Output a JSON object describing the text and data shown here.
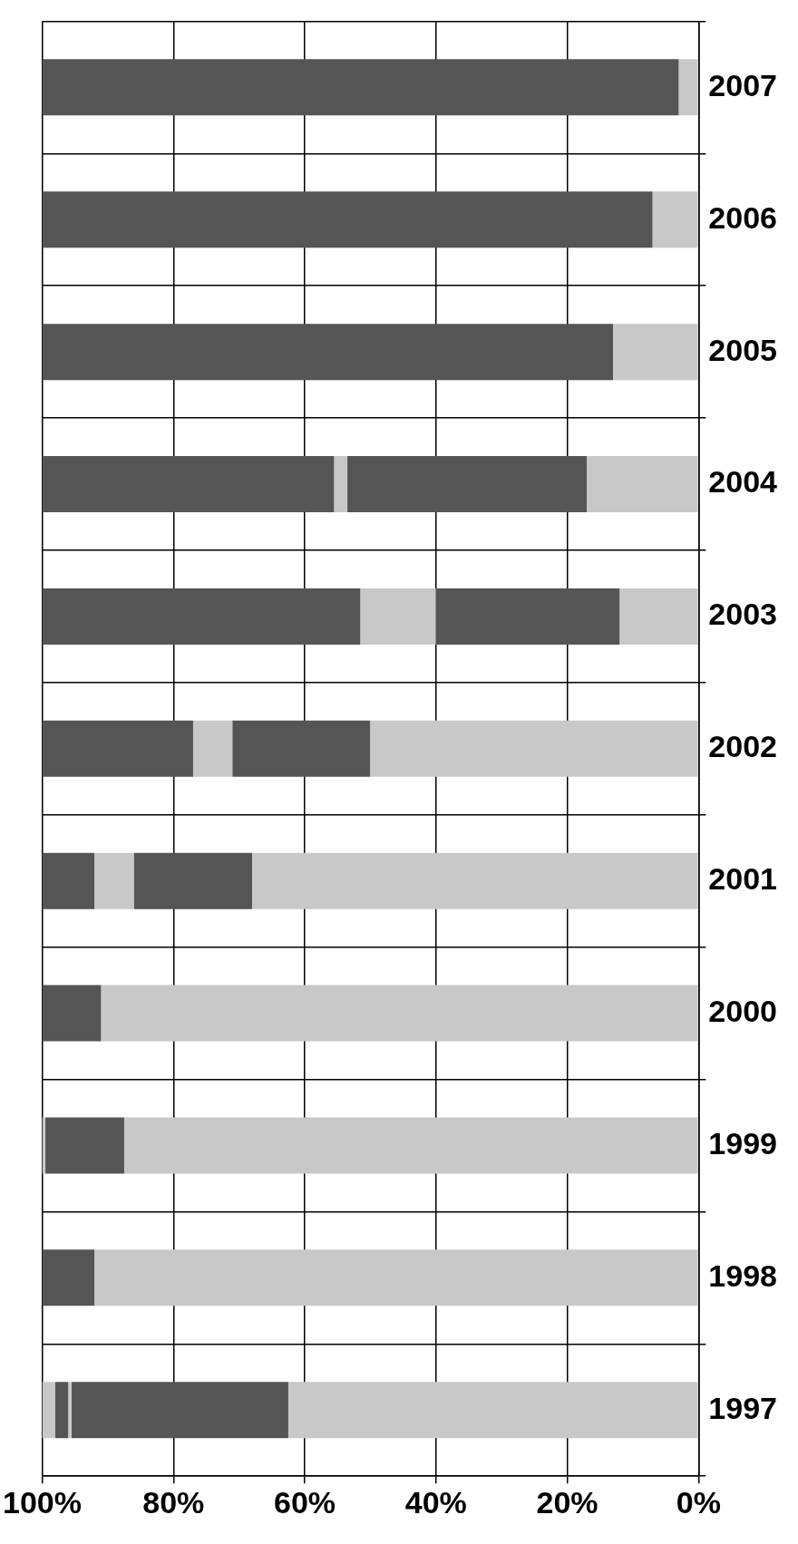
{
  "chart_data": {
    "type": "bar",
    "orientation": "horizontal",
    "stacked": true,
    "categories": [
      "2007",
      "2006",
      "2005",
      "2004",
      "2003",
      "2002",
      "2001",
      "2000",
      "1999",
      "1998",
      "1997"
    ],
    "series": [
      {
        "color": "#c8c8c8",
        "values": [
          3,
          7,
          13,
          17,
          12,
          50,
          68,
          91,
          87.5,
          92,
          62.5
        ]
      },
      {
        "color": "#555555",
        "values": [
          97,
          93,
          87,
          36.5,
          28,
          21,
          18,
          9,
          12,
          8,
          33
        ]
      },
      {
        "color": "#c8c8c8",
        "values": [
          null,
          null,
          null,
          2,
          11.5,
          6,
          6,
          null,
          0.5,
          null,
          0.5
        ]
      },
      {
        "color": "#555555",
        "values": [
          null,
          null,
          null,
          44.5,
          48.5,
          23,
          8,
          null,
          null,
          null,
          2
        ]
      },
      {
        "color": "#c8c8c8",
        "values": [
          null,
          null,
          null,
          null,
          null,
          null,
          null,
          null,
          null,
          null,
          2
        ]
      }
    ],
    "xlim": [
      100,
      0
    ],
    "xticks": [
      {
        "value": 100,
        "label": "100%"
      },
      {
        "value": 80,
        "label": "80%"
      },
      {
        "value": 60,
        "label": "60%"
      },
      {
        "value": 40,
        "label": "40%"
      },
      {
        "value": 20,
        "label": "20%"
      },
      {
        "value": 0,
        "label": "0%"
      }
    ],
    "grid": true
  }
}
